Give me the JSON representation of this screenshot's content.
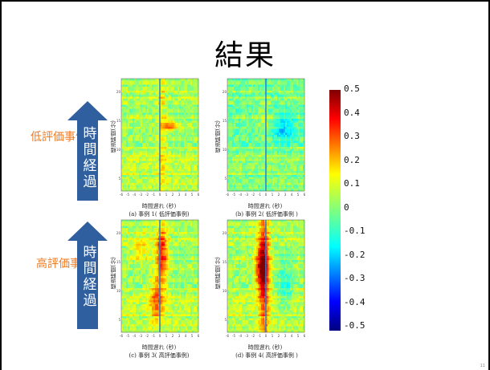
{
  "slide": {
    "title": "結果",
    "page_number": "11"
  },
  "groups": [
    {
      "label": "低評価事例",
      "arrow_text": "時間経過"
    },
    {
      "label": "高評価事例",
      "arrow_text": "時間経過"
    }
  ],
  "panels": [
    {
      "id": "a",
      "caption": "(a) 事例 1( 低評価事例)",
      "ylabel": "経過時間(分)",
      "xlabel": "時間遅れ (秒)",
      "xticks": [
        "-6",
        "-5",
        "-4",
        "-3",
        "-2",
        "-1",
        "0",
        "1",
        "2",
        "3",
        "4",
        "5",
        "6"
      ],
      "yticks": [
        "20",
        "15",
        "10",
        "5"
      ],
      "pattern": "low1"
    },
    {
      "id": "b",
      "caption": "(b) 事例 2( 低評価事例 )",
      "ylabel": "経過時間(分)",
      "xlabel": "時間遅れ (秒)",
      "xticks": [
        "-6",
        "-5",
        "-4",
        "-3",
        "-2",
        "-1",
        "0",
        "1",
        "2",
        "3",
        "4",
        "5",
        "6"
      ],
      "yticks": [
        "20",
        "15",
        "10",
        "5"
      ],
      "pattern": "low2"
    },
    {
      "id": "c",
      "caption": "(c) 事例 3( 高評価事例)",
      "ylabel": "経過時間(分)",
      "xlabel": "時間遅れ (秒)",
      "xticks": [
        "-6",
        "-5",
        "-4",
        "-3",
        "-2",
        "-1",
        "0",
        "1",
        "2",
        "3",
        "4",
        "5",
        "6"
      ],
      "yticks": [
        "20",
        "15",
        "10",
        "5"
      ],
      "pattern": "high1"
    },
    {
      "id": "d",
      "caption": "(d) 事例 4( 高評価事例 )",
      "ylabel": "経過時間(分)",
      "xlabel": "時間遅れ (秒)",
      "xticks": [
        "-6",
        "-5",
        "-4",
        "-3",
        "-2",
        "-1",
        "0",
        "1",
        "2",
        "3",
        "4",
        "5",
        "6"
      ],
      "yticks": [
        "20",
        "15",
        "10",
        "5"
      ],
      "pattern": "high2"
    }
  ],
  "colorbar": {
    "ticks": [
      "0.5",
      "0.4",
      "0.3",
      "0.2",
      "0.1",
      "0",
      "-0.1",
      "-0.2",
      "-0.3",
      "-0.4",
      "-0.5"
    ]
  },
  "colors": {
    "arrow": "#2f5f9e",
    "group_label": "#f07a22",
    "center_line": "#2a7fd4"
  }
}
